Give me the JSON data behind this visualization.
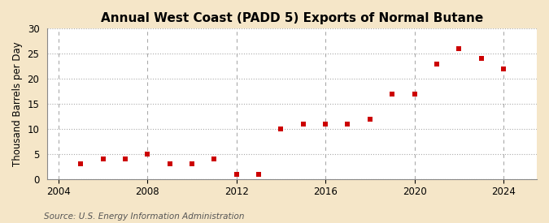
{
  "title": "Annual West Coast (PADD 5) Exports of Normal Butane",
  "ylabel": "Thousand Barrels per Day",
  "source": "Source: U.S. Energy Information Administration",
  "fig_background_color": "#f5e6c8",
  "plot_background_color": "#ffffff",
  "marker_color": "#cc0000",
  "marker": "s",
  "markersize": 4,
  "years": [
    2005,
    2006,
    2007,
    2008,
    2009,
    2010,
    2011,
    2012,
    2013,
    2014,
    2015,
    2016,
    2017,
    2018,
    2019,
    2020,
    2021,
    2022,
    2023,
    2024
  ],
  "values": [
    3.0,
    4.0,
    4.0,
    5.0,
    3.0,
    3.0,
    4.0,
    1.0,
    1.0,
    10.0,
    11.0,
    11.0,
    11.0,
    12.0,
    17.0,
    17.0,
    23.0,
    26.0,
    24.0,
    22.0
  ],
  "xlim": [
    2003.5,
    2025.5
  ],
  "ylim": [
    0,
    30
  ],
  "yticks": [
    0,
    5,
    10,
    15,
    20,
    25,
    30
  ],
  "xticks": [
    2004,
    2008,
    2012,
    2016,
    2020,
    2024
  ],
  "grid_color": "#aaaaaa",
  "title_fontsize": 11,
  "label_fontsize": 8.5,
  "tick_fontsize": 8.5,
  "source_fontsize": 7.5
}
